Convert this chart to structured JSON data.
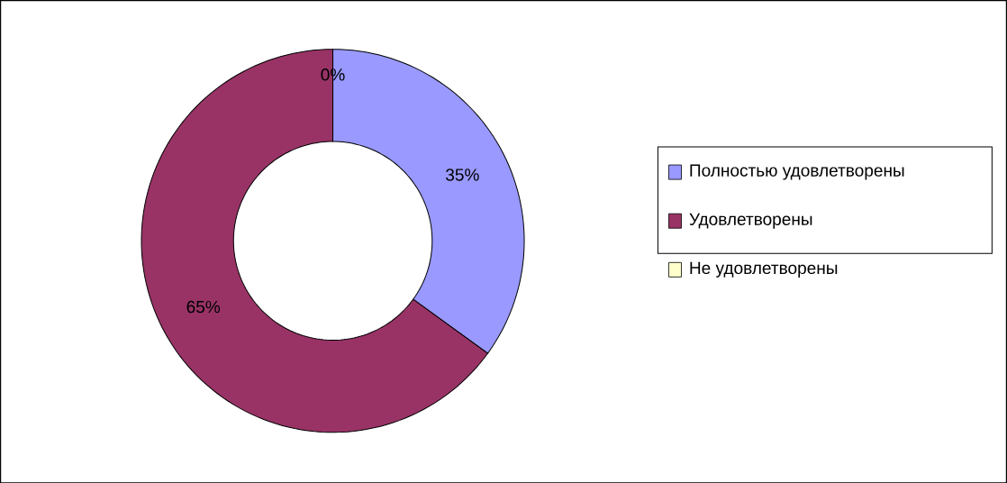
{
  "chart_data": {
    "type": "donut",
    "categories": [
      "Полностью удовлетворены",
      "Удовлетворены",
      "Не удовлетворены"
    ],
    "values": [
      35,
      65,
      0
    ],
    "colors": [
      "#9999ff",
      "#993366",
      "#ffffcc"
    ],
    "value_labels": [
      "35%",
      "65%",
      "0%"
    ],
    "legend": "right"
  }
}
